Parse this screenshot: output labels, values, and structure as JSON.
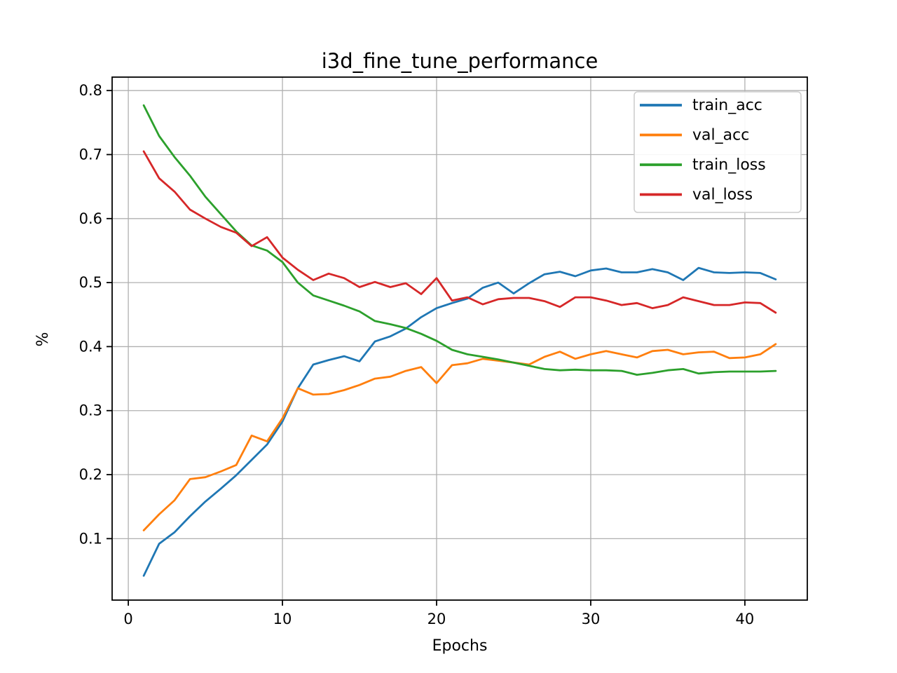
{
  "page": {
    "background_color": "#ffffff",
    "text_color": "#000000"
  },
  "chart_data": {
    "type": "line",
    "title": "i3d_fine_tune_performance",
    "xlabel": "Epochs",
    "ylabel": "%",
    "grid": true,
    "grid_color": "#b0b0b0",
    "axis_color": "#000000",
    "legend_position": "upper right",
    "legend_border_color": "#cccccc",
    "xlim": [
      -1.05,
      44.05
    ],
    "ylim": [
      0.004,
      0.821
    ],
    "xticks": [
      0,
      10,
      20,
      30,
      40
    ],
    "yticks": [
      0.1,
      0.2,
      0.3,
      0.4,
      0.5,
      0.6,
      0.7,
      0.8
    ],
    "x": [
      1,
      2,
      3,
      4,
      5,
      6,
      7,
      8,
      9,
      10,
      11,
      12,
      13,
      14,
      15,
      16,
      17,
      18,
      19,
      20,
      21,
      22,
      23,
      24,
      25,
      26,
      27,
      28,
      29,
      30,
      31,
      32,
      33,
      34,
      35,
      36,
      37,
      38,
      39,
      40,
      41,
      42
    ],
    "series": [
      {
        "name": "train_acc",
        "color": "#1f77b4",
        "values": [
          0.042,
          0.092,
          0.11,
          0.135,
          0.158,
          0.178,
          0.199,
          0.223,
          0.247,
          0.283,
          0.335,
          0.372,
          0.379,
          0.385,
          0.377,
          0.408,
          0.416,
          0.428,
          0.446,
          0.46,
          0.468,
          0.475,
          0.492,
          0.5,
          0.483,
          0.499,
          0.513,
          0.517,
          0.51,
          0.519,
          0.522,
          0.516,
          0.516,
          0.521,
          0.516,
          0.504,
          0.523,
          0.516,
          0.515,
          0.516,
          0.515,
          0.505
        ]
      },
      {
        "name": "val_acc",
        "color": "#ff7f0e",
        "values": [
          0.113,
          0.138,
          0.16,
          0.193,
          0.196,
          0.205,
          0.215,
          0.261,
          0.252,
          0.288,
          0.335,
          0.325,
          0.326,
          0.332,
          0.34,
          0.35,
          0.353,
          0.362,
          0.368,
          0.343,
          0.371,
          0.374,
          0.381,
          0.378,
          0.375,
          0.372,
          0.384,
          0.392,
          0.381,
          0.388,
          0.393,
          0.388,
          0.383,
          0.393,
          0.395,
          0.388,
          0.391,
          0.392,
          0.382,
          0.383,
          0.388,
          0.404
        ]
      },
      {
        "name": "train_loss",
        "color": "#2ca02c",
        "values": [
          0.777,
          0.729,
          0.696,
          0.667,
          0.634,
          0.607,
          0.58,
          0.558,
          0.55,
          0.532,
          0.5,
          0.48,
          0.472,
          0.464,
          0.455,
          0.44,
          0.435,
          0.429,
          0.42,
          0.409,
          0.395,
          0.388,
          0.384,
          0.38,
          0.375,
          0.37,
          0.365,
          0.363,
          0.364,
          0.363,
          0.363,
          0.362,
          0.356,
          0.359,
          0.363,
          0.365,
          0.358,
          0.36,
          0.361,
          0.361,
          0.361,
          0.362
        ]
      },
      {
        "name": "val_loss",
        "color": "#d62728",
        "values": [
          0.705,
          0.663,
          0.642,
          0.614,
          0.6,
          0.587,
          0.578,
          0.557,
          0.571,
          0.539,
          0.52,
          0.504,
          0.514,
          0.507,
          0.493,
          0.501,
          0.493,
          0.499,
          0.482,
          0.507,
          0.472,
          0.477,
          0.466,
          0.474,
          0.476,
          0.476,
          0.471,
          0.462,
          0.477,
          0.477,
          0.472,
          0.465,
          0.468,
          0.46,
          0.465,
          0.477,
          0.471,
          0.465,
          0.465,
          0.469,
          0.468,
          0.453
        ]
      }
    ]
  }
}
